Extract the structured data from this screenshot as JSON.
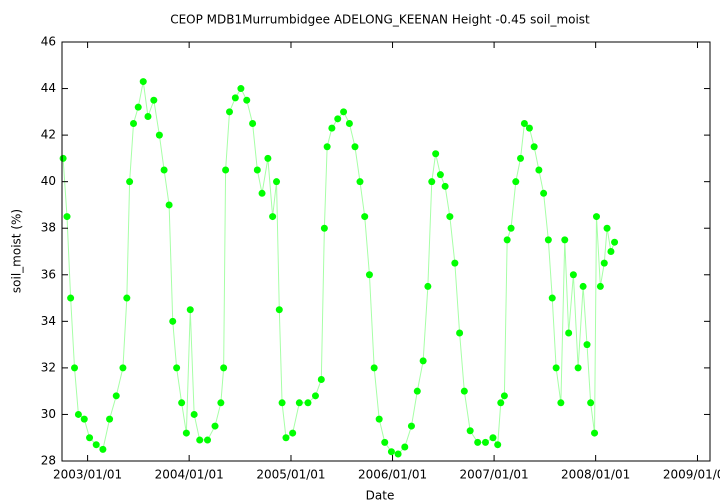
{
  "chart_data": {
    "type": "line",
    "title": "CEOP MDB1Murrumbidgee ADELONG_KEENAN Height -0.45 soil_moist",
    "x_label": "Date",
    "y_label": "soil_moist (%)",
    "xlim": [
      "2002/10/01",
      "2009/02/15"
    ],
    "xticks": [
      "2003/01/01",
      "2004/01/01",
      "2005/01/01",
      "2006/01/01",
      "2007/01/01",
      "2008/01/01",
      "2009/01/01"
    ],
    "ylim": [
      28,
      46
    ],
    "yticks": [
      28,
      30,
      32,
      34,
      36,
      38,
      40,
      42,
      44,
      46
    ],
    "grid": false,
    "x": [
      "2002/10/05",
      "2002/10/19",
      "2002/11/01",
      "2002/11/15",
      "2002/11/29",
      "2002/12/20",
      "2003/01/08",
      "2003/02/01",
      "2003/02/25",
      "2003/03/21",
      "2003/04/14",
      "2003/05/08",
      "2003/05/22",
      "2003/06/01",
      "2003/06/15",
      "2003/07/02",
      "2003/07/20",
      "2003/08/06",
      "2003/08/27",
      "2003/09/16",
      "2003/10/03",
      "2003/10/21",
      "2003/11/03",
      "2003/11/17",
      "2003/12/05",
      "2003/12/22",
      "2004/01/05",
      "2004/01/19",
      "2004/02/08",
      "2004/03/07",
      "2004/04/03",
      "2004/04/24",
      "2004/05/04",
      "2004/05/11",
      "2004/05/25",
      "2004/06/15",
      "2004/07/05",
      "2004/07/26",
      "2004/08/16",
      "2004/09/02",
      "2004/09/19",
      "2004/10/10",
      "2004/10/27",
      "2004/11/10",
      "2004/11/20",
      "2004/11/30",
      "2004/12/14",
      "2005/01/07",
      "2005/01/31",
      "2005/03/03",
      "2005/03/30",
      "2005/04/20",
      "2005/05/01",
      "2005/05/11",
      "2005/05/28",
      "2005/06/18",
      "2005/07/09",
      "2005/07/30",
      "2005/08/19",
      "2005/09/06",
      "2005/09/23",
      "2005/10/10",
      "2005/10/27",
      "2005/11/14",
      "2005/12/04",
      "2005/12/28",
      "2006/01/21",
      "2006/02/14",
      "2006/03/10",
      "2006/03/31",
      "2006/04/21",
      "2006/05/08",
      "2006/05/22",
      "2006/06/05",
      "2006/06/22",
      "2006/07/09",
      "2006/07/26",
      "2006/08/13",
      "2006/08/30",
      "2006/09/16",
      "2006/10/07",
      "2006/11/03",
      "2006/12/01",
      "2006/12/28",
      "2007/01/14",
      "2007/01/25",
      "2007/02/07",
      "2007/02/17",
      "2007/03/03",
      "2007/03/20",
      "2007/04/06",
      "2007/04/20",
      "2007/05/08",
      "2007/05/25",
      "2007/06/11",
      "2007/06/28",
      "2007/07/15",
      "2007/07/29",
      "2007/08/12",
      "2007/08/29",
      "2007/09/12",
      "2007/09/26",
      "2007/10/13",
      "2007/10/30",
      "2007/11/17",
      "2007/12/01",
      "2007/12/14",
      "2007/12/28",
      "2008/01/04",
      "2008/01/18",
      "2008/02/01",
      "2008/02/11",
      "2008/02/25",
      "2008/03/09"
    ],
    "series": [
      {
        "name": "soil_moist",
        "color": "#00ff00",
        "values": [
          41,
          38.5,
          35,
          32,
          30,
          29.8,
          29,
          28.7,
          28.5,
          29.8,
          30.8,
          32,
          35,
          40,
          42.5,
          43.2,
          44.3,
          42.8,
          43.5,
          42,
          40.5,
          39,
          34,
          32,
          30.5,
          29.2,
          34.5,
          30,
          28.9,
          28.9,
          29.5,
          30.5,
          32,
          40.5,
          43,
          43.6,
          44,
          43.5,
          42.5,
          40.5,
          39.5,
          41,
          38.5,
          40,
          34.5,
          30.5,
          29,
          29.2,
          30.5,
          30.5,
          30.8,
          31.5,
          38,
          41.5,
          42.3,
          42.7,
          43,
          42.5,
          41.5,
          40,
          38.5,
          36,
          32,
          29.8,
          28.8,
          28.4,
          28.3,
          28.6,
          29.5,
          31,
          32.3,
          35.5,
          40,
          41.2,
          40.3,
          39.8,
          38.5,
          36.5,
          33.5,
          31,
          29.3,
          28.8,
          28.8,
          29,
          28.7,
          30.5,
          30.8,
          37.5,
          38,
          40,
          41,
          42.5,
          42.3,
          41.5,
          40.5,
          39.5,
          37.5,
          35,
          32,
          30.5,
          37.5,
          33.5,
          36,
          32,
          35.5,
          33,
          30.5,
          29.2,
          38.5,
          35.5,
          36.5,
          38,
          37,
          37.4
        ]
      }
    ]
  }
}
